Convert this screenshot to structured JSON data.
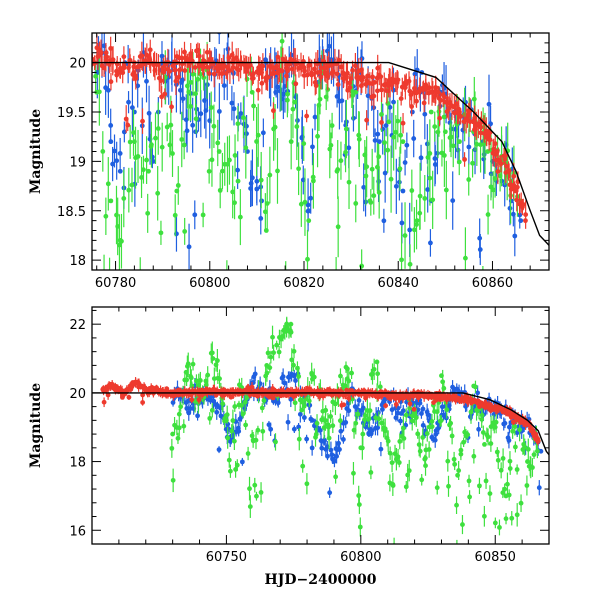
{
  "chart_data": [
    {
      "type": "scatter",
      "title": "",
      "xlabel": "",
      "ylabel": "Magnitude",
      "xlim": [
        60775,
        60872
      ],
      "ylim": [
        20.3,
        17.9
      ],
      "y_inverted": true,
      "xticks": [
        60780,
        60800,
        60820,
        60840,
        60860
      ],
      "yticks": [
        18,
        18.5,
        19,
        19.5,
        20
      ],
      "series": [
        {
          "color": "#1f5fe0",
          "noise": 0.45,
          "outlier_rate": 0.18,
          "errbar": [
            0.1,
            0.3
          ],
          "points": [
            [
              60776,
              19.9
            ],
            [
              60778,
              20.1
            ],
            [
              60779,
              19.2
            ],
            [
              60781,
              18.9
            ],
            [
              60782,
              20.0
            ],
            [
              60784,
              19.5
            ],
            [
              60786,
              20.1
            ],
            [
              60788,
              19.0
            ],
            [
              60790,
              20.0
            ],
            [
              60794,
              19.8
            ],
            [
              60797,
              19.3
            ],
            [
              60801,
              20.0
            ],
            [
              60805,
              19.9
            ],
            [
              60808,
              19.1
            ],
            [
              60811,
              18.6
            ],
            [
              60812,
              20.0
            ],
            [
              60814,
              19.7
            ],
            [
              60818,
              20.0
            ],
            [
              60821,
              18.5
            ],
            [
              60823,
              19.8
            ],
            [
              60826,
              20.0
            ],
            [
              60829,
              19.4
            ],
            [
              60832,
              19.9
            ],
            [
              60836,
              19.2
            ],
            [
              60839,
              19.6
            ],
            [
              60841,
              18.7
            ],
            [
              60843,
              19.5
            ],
            [
              60845,
              19.9
            ],
            [
              60847,
              18.6
            ],
            [
              60849,
              19.7
            ],
            [
              60852,
              19.5
            ],
            [
              60854,
              19.4
            ],
            [
              60856,
              19.3
            ],
            [
              60858,
              19.2
            ],
            [
              60860,
              19.0
            ],
            [
              60862,
              18.8
            ],
            [
              60864,
              18.6
            ],
            [
              60866,
              18.4
            ]
          ]
        },
        {
          "color": "#3ee03e",
          "noise": 0.6,
          "outlier_rate": 0.3,
          "errbar": [
            0.12,
            0.35
          ],
          "points": [
            [
              60776,
              19.7
            ],
            [
              60779,
              18.6
            ],
            [
              60781,
              18.2
            ],
            [
              60784,
              19.2
            ],
            [
              60787,
              18.9
            ],
            [
              60790,
              19.9
            ],
            [
              60793,
              18.7
            ],
            [
              60796,
              19.8
            ],
            [
              60799,
              20.0
            ],
            [
              60802,
              19.1
            ],
            [
              60806,
              18.8
            ],
            [
              60809,
              19.7
            ],
            [
              60812,
              18.3
            ],
            [
              60815,
              19.9
            ],
            [
              60818,
              19.6
            ],
            [
              60821,
              18.4
            ],
            [
              60824,
              19.9
            ],
            [
              60827,
              18.9
            ],
            [
              60831,
              19.7
            ],
            [
              60834,
              18.6
            ],
            [
              60838,
              19.4
            ],
            [
              60841,
              19.2
            ],
            [
              60844,
              18.4
            ],
            [
              60847,
              19.5
            ],
            [
              60850,
              19.3
            ],
            [
              60853,
              19.2
            ],
            [
              60856,
              19.3
            ],
            [
              60859,
              19.1
            ],
            [
              60862,
              19.0
            ],
            [
              60864,
              18.8
            ],
            [
              60866,
              18.6
            ]
          ]
        },
        {
          "color": "#ee3a2e",
          "noise": 0.18,
          "outlier_rate": 0.06,
          "errbar": [
            0.05,
            0.15
          ],
          "points": [
            [
              60775,
              20.0
            ],
            [
              60778,
              20.1
            ],
            [
              60781,
              19.9
            ],
            [
              60784,
              20.0
            ],
            [
              60787,
              20.0
            ],
            [
              60790,
              19.95
            ],
            [
              60793,
              20.0
            ],
            [
              60796,
              20.05
            ],
            [
              60799,
              20.0
            ],
            [
              60802,
              19.95
            ],
            [
              60805,
              20.0
            ],
            [
              60808,
              19.95
            ],
            [
              60811,
              19.9
            ],
            [
              60814,
              19.95
            ],
            [
              60817,
              20.0
            ],
            [
              60820,
              19.95
            ],
            [
              60823,
              19.9
            ],
            [
              60826,
              19.9
            ],
            [
              60829,
              19.85
            ],
            [
              60832,
              19.85
            ],
            [
              60835,
              19.8
            ],
            [
              60838,
              19.8
            ],
            [
              60841,
              19.75
            ],
            [
              60844,
              19.7
            ],
            [
              60847,
              19.7
            ],
            [
              60850,
              19.6
            ],
            [
              60853,
              19.5
            ],
            [
              60856,
              19.4
            ],
            [
              60859,
              19.3
            ],
            [
              60861,
              19.1
            ],
            [
              60863,
              18.95
            ],
            [
              60865,
              18.7
            ],
            [
              60867,
              18.4
            ]
          ]
        }
      ],
      "model_curve": {
        "color": "#000000",
        "points": [
          [
            60775,
            20.0
          ],
          [
            60838,
            20.0
          ],
          [
            60848,
            19.85
          ],
          [
            60856,
            19.5
          ],
          [
            60862,
            19.2
          ],
          [
            60865,
            18.9
          ],
          [
            60868,
            18.5
          ],
          [
            60870,
            18.25
          ],
          [
            60872,
            18.15
          ]
        ]
      }
    },
    {
      "type": "scatter",
      "title": "",
      "xlabel": "HJD−2400000",
      "ylabel": "Magnitude",
      "xlim": [
        60700,
        60870
      ],
      "ylim": [
        22.5,
        15.6
      ],
      "y_inverted": true,
      "xticks": [
        60750,
        60800,
        60850
      ],
      "yticks": [
        16,
        18,
        20,
        22
      ],
      "series": [
        {
          "color": "#1f5fe0",
          "noise": 0.45,
          "outlier_rate": 0.14,
          "errbar": [
            0.1,
            0.25
          ],
          "points": [
            [
              60730,
              20.0
            ],
            [
              60738,
              19.7
            ],
            [
              60745,
              19.9
            ],
            [
              60752,
              18.7
            ],
            [
              60760,
              20.3
            ],
            [
              60768,
              19.8
            ],
            [
              60775,
              20.5
            ],
            [
              60782,
              19.2
            ],
            [
              60790,
              18.0
            ],
            [
              60797,
              20.1
            ],
            [
              60803,
              18.8
            ],
            [
              60810,
              19.9
            ],
            [
              60815,
              19.4
            ],
            [
              60822,
              19.7
            ],
            [
              60828,
              18.9
            ],
            [
              60835,
              20.1
            ],
            [
              60842,
              19.5
            ],
            [
              60848,
              19.6
            ],
            [
              60852,
              19.4
            ],
            [
              60856,
              19.3
            ],
            [
              60860,
              19.2
            ],
            [
              60864,
              18.8
            ],
            [
              60867,
              18.3
            ]
          ]
        },
        {
          "color": "#3ee03e",
          "noise": 0.8,
          "outlier_rate": 0.3,
          "errbar": [
            0.12,
            0.35
          ],
          "points": [
            [
              60730,
              18.8
            ],
            [
              60735,
              20.6
            ],
            [
              60740,
              19.8
            ],
            [
              60745,
              21.0
            ],
            [
              60750,
              19.2
            ],
            [
              60755,
              20.0
            ],
            [
              60760,
              18.6
            ],
            [
              60765,
              20.8
            ],
            [
              60770,
              21.6
            ],
            [
              60774,
              22.0
            ],
            [
              60778,
              19.5
            ],
            [
              60782,
              20.4
            ],
            [
              60788,
              19.0
            ],
            [
              60795,
              20.7
            ],
            [
              60800,
              18.4
            ],
            [
              60806,
              20.9
            ],
            [
              60812,
              17.3
            ],
            [
              60818,
              19.8
            ],
            [
              60824,
              18.1
            ],
            [
              60830,
              20.5
            ],
            [
              60836,
              17.6
            ],
            [
              60842,
              20.2
            ],
            [
              60846,
              18.5
            ],
            [
              60850,
              19.0
            ],
            [
              60854,
              17.0
            ],
            [
              60858,
              19.2
            ],
            [
              60862,
              18.0
            ],
            [
              60866,
              18.6
            ]
          ]
        },
        {
          "color": "#ee3a2e",
          "noise": 0.12,
          "outlier_rate": 0.05,
          "errbar": [
            0.05,
            0.15
          ],
          "points": [
            [
              60704,
              20.1
            ],
            [
              60708,
              20.2
            ],
            [
              60712,
              20.0
            ],
            [
              60716,
              20.3
            ],
            [
              60720,
              20.1
            ],
            [
              60728,
              20.0
            ],
            [
              60735,
              20.0
            ],
            [
              60742,
              20.05
            ],
            [
              60750,
              20.0
            ],
            [
              60757,
              20.05
            ],
            [
              60765,
              20.0
            ],
            [
              60772,
              20.0
            ],
            [
              60780,
              20.05
            ],
            [
              60788,
              20.0
            ],
            [
              60795,
              20.0
            ],
            [
              60802,
              20.0
            ],
            [
              60809,
              19.95
            ],
            [
              60815,
              19.9
            ],
            [
              60822,
              19.95
            ],
            [
              60829,
              19.9
            ],
            [
              60836,
              19.85
            ],
            [
              60842,
              19.75
            ],
            [
              60848,
              19.6
            ],
            [
              60853,
              19.5
            ],
            [
              60858,
              19.3
            ],
            [
              60862,
              19.1
            ],
            [
              60866,
              18.6
            ]
          ]
        }
      ],
      "model_curve": {
        "color": "#000000",
        "points": [
          [
            60700,
            20.0
          ],
          [
            60838,
            20.0
          ],
          [
            60848,
            19.8
          ],
          [
            60856,
            19.5
          ],
          [
            60862,
            19.2
          ],
          [
            60866,
            18.9
          ],
          [
            60869,
            18.3
          ],
          [
            60870,
            18.2
          ]
        ]
      }
    }
  ]
}
